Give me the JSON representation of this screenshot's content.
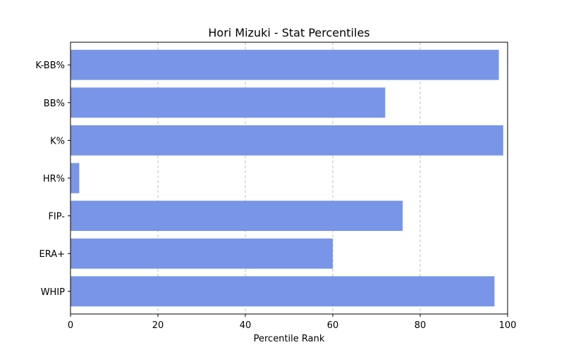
{
  "chart_data": {
    "type": "bar",
    "orientation": "horizontal",
    "title": "Hori Mizuki - Stat Percentiles",
    "xlabel": "Percentile Rank",
    "ylabel": "",
    "xlim": [
      0,
      100
    ],
    "xticks": [
      0,
      20,
      40,
      60,
      80,
      100
    ],
    "categories": [
      "K-BB%",
      "BB%",
      "K%",
      "HR%",
      "FIP-",
      "ERA+",
      "WHIP"
    ],
    "values": [
      98,
      72,
      99,
      2,
      76,
      60,
      97
    ],
    "bar_color": "#7895e8",
    "grid": "x-dashed"
  }
}
